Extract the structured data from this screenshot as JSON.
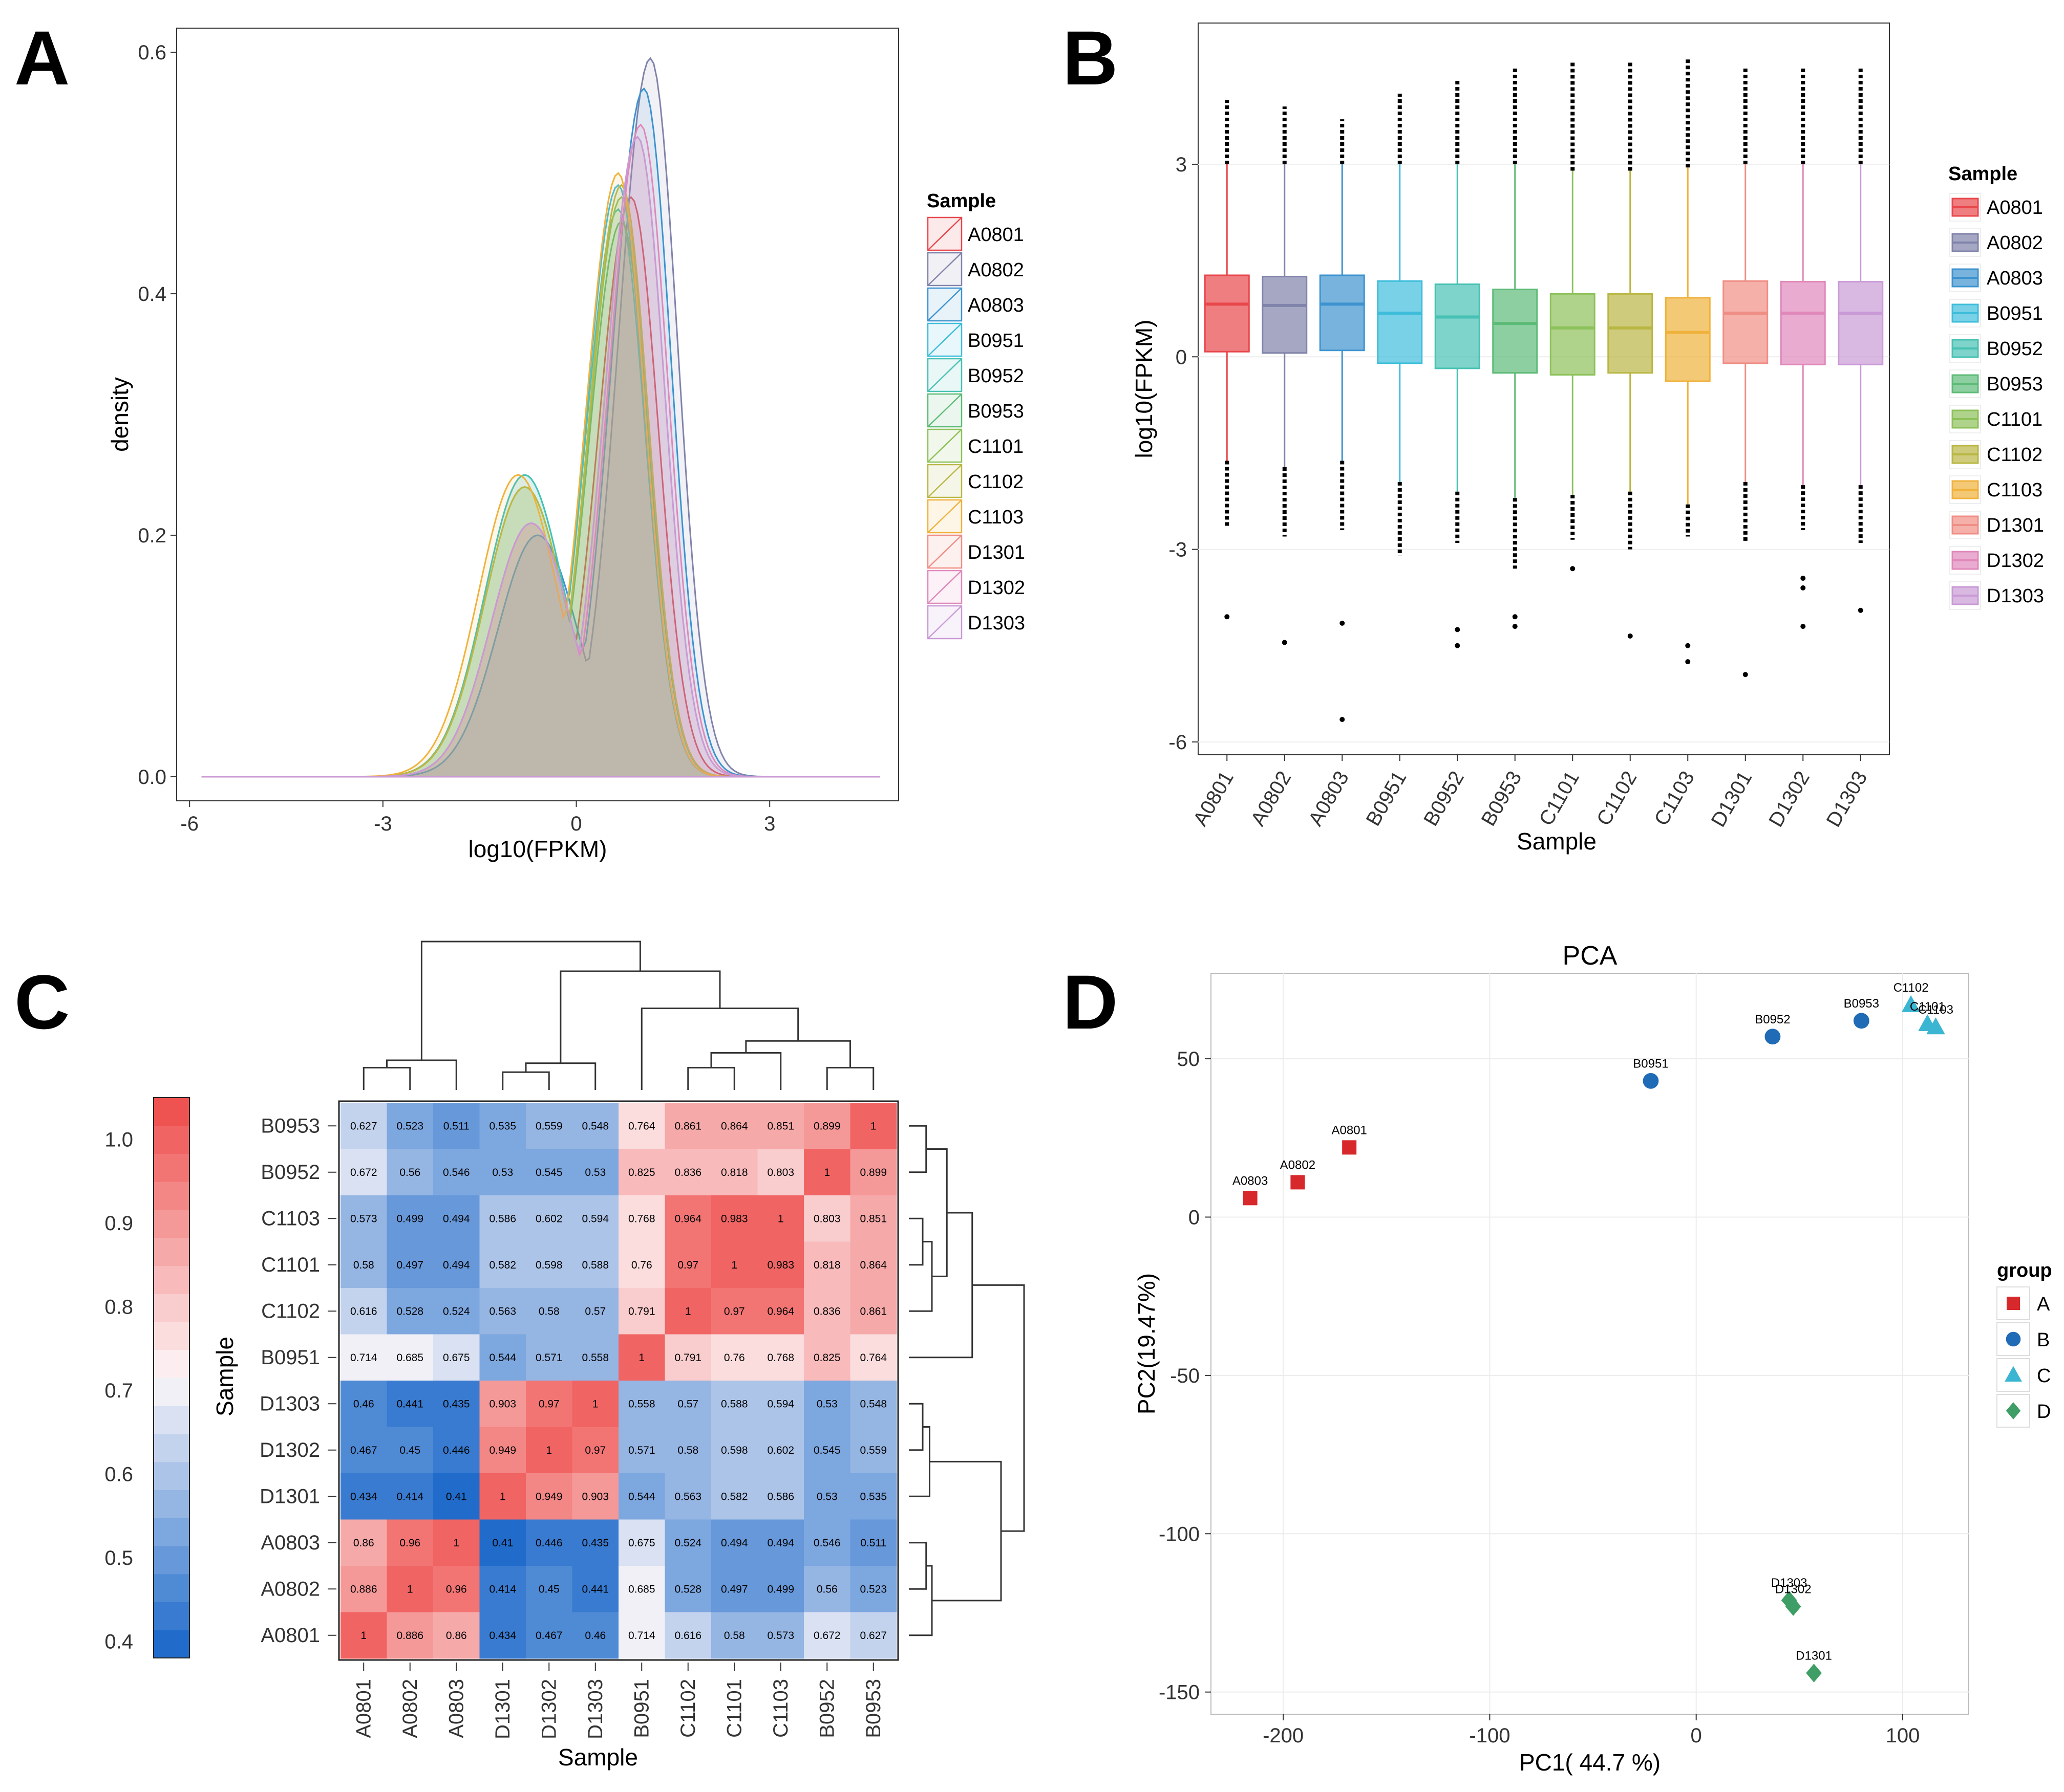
{
  "panels": {
    "a": "A",
    "b": "B",
    "c": "C",
    "d": "D"
  },
  "samples": [
    "A0801",
    "A0802",
    "A0803",
    "B0951",
    "B0952",
    "B0953",
    "C1101",
    "C1102",
    "C1103",
    "D1301",
    "D1302",
    "D1303"
  ],
  "colors": {
    "A0801": "#E8474C",
    "A0802": "#8083AA",
    "A0803": "#3D93CF",
    "B0951": "#3EBDDB",
    "B0952": "#47C1B3",
    "B0953": "#5DBB77",
    "C1101": "#8DC15A",
    "C1102": "#B9B744",
    "C1103": "#EFB23C",
    "D1301": "#EF8E85",
    "D1302": "#E088BA",
    "D1303": "#C99AD6"
  },
  "chart_data": [
    {
      "panel": "A",
      "type": "area",
      "title": "",
      "xlabel": "log10(FPKM)",
      "ylabel": "density",
      "xlim": [
        -6.2,
        5.0
      ],
      "ylim": [
        -0.02,
        0.62
      ],
      "xticks": [
        -6,
        -3,
        0,
        3
      ],
      "yticks": [
        0.0,
        0.2,
        0.4,
        0.6
      ],
      "xtick_labels": [
        "-6",
        "-3",
        "0",
        "3"
      ],
      "ytick_labels": [
        "0.0",
        "0.2",
        "0.4",
        "0.6"
      ],
      "legend_title": "Sample",
      "legend_labels": [
        "A0801",
        "A0802",
        "A0803",
        "B0951",
        "B0952",
        "B0953",
        "C1101",
        "C1102",
        "C1103",
        "D1301",
        "D1302",
        "D1303"
      ],
      "x_range": [
        -5.8,
        4.7
      ],
      "series": [
        {
          "name": "A0801",
          "peak_x": 0.85,
          "peak": 0.48,
          "shoulder_x": -0.7,
          "shoulder": 0.21
        },
        {
          "name": "A0802",
          "peak_x": 1.15,
          "peak": 0.595,
          "shoulder_x": -0.6,
          "shoulder": 0.2
        },
        {
          "name": "A0803",
          "peak_x": 1.05,
          "peak": 0.57,
          "shoulder_x": -0.6,
          "shoulder": 0.2
        },
        {
          "name": "B0951",
          "peak_x": 0.65,
          "peak": 0.49,
          "shoulder_x": -0.8,
          "shoulder": 0.25
        },
        {
          "name": "B0952",
          "peak_x": 0.65,
          "peak": 0.47,
          "shoulder_x": -0.8,
          "shoulder": 0.25
        },
        {
          "name": "B0953",
          "peak_x": 0.7,
          "peak": 0.46,
          "shoulder_x": -0.8,
          "shoulder": 0.24
        },
        {
          "name": "C1101",
          "peak_x": 0.7,
          "peak": 0.48,
          "shoulder_x": -0.8,
          "shoulder": 0.24
        },
        {
          "name": "C1102",
          "peak_x": 0.7,
          "peak": 0.49,
          "shoulder_x": -0.8,
          "shoulder": 0.24
        },
        {
          "name": "C1103",
          "peak_x": 0.65,
          "peak": 0.5,
          "shoulder_x": -0.9,
          "shoulder": 0.25
        },
        {
          "name": "D1301",
          "peak_x": 0.95,
          "peak": 0.53,
          "shoulder_x": -0.7,
          "shoulder": 0.21
        },
        {
          "name": "D1302",
          "peak_x": 1.0,
          "peak": 0.54,
          "shoulder_x": -0.7,
          "shoulder": 0.21
        },
        {
          "name": "D1303",
          "peak_x": 0.95,
          "peak": 0.53,
          "shoulder_x": -0.7,
          "shoulder": 0.21
        }
      ]
    },
    {
      "panel": "B",
      "type": "box",
      "title": "",
      "xlabel": "Sample",
      "ylabel": "log10(FPKM)",
      "ylim": [
        -6.2,
        5.2
      ],
      "yticks": [
        -6,
        -3,
        0,
        3
      ],
      "ytick_labels": [
        "-6",
        "-3",
        "0",
        "3"
      ],
      "legend_title": "Sample",
      "categories": [
        "A0801",
        "A0802",
        "A0803",
        "B0951",
        "B0952",
        "B0953",
        "C1101",
        "C1102",
        "C1103",
        "D1301",
        "D1302",
        "D1303"
      ],
      "boxes": [
        {
          "q1": 0.08,
          "median": 0.82,
          "q3": 1.27,
          "whisker_low": -1.62,
          "whisker_high": 3.0,
          "out_low": -2.65,
          "out_high": 4.0,
          "extra_outliers": [
            -4.05
          ]
        },
        {
          "q1": 0.06,
          "median": 0.8,
          "q3": 1.25,
          "whisker_low": -1.72,
          "whisker_high": 3.0,
          "out_low": -2.8,
          "out_high": 3.9,
          "extra_outliers": [
            -4.45
          ]
        },
        {
          "q1": 0.1,
          "median": 0.82,
          "q3": 1.27,
          "whisker_low": -1.62,
          "whisker_high": 3.0,
          "out_low": -2.7,
          "out_high": 3.7,
          "extra_outliers": [
            -4.15,
            -5.65
          ]
        },
        {
          "q1": -0.1,
          "median": 0.68,
          "q3": 1.18,
          "whisker_low": -1.95,
          "whisker_high": 3.0,
          "out_low": -3.1,
          "out_high": 4.1,
          "extra_outliers": []
        },
        {
          "q1": -0.18,
          "median": 0.62,
          "q3": 1.13,
          "whisker_low": -2.1,
          "whisker_high": 3.0,
          "out_low": -2.9,
          "out_high": 4.3,
          "extra_outliers": [
            -4.25,
            -4.5
          ]
        },
        {
          "q1": -0.25,
          "median": 0.52,
          "q3": 1.05,
          "whisker_low": -2.2,
          "whisker_high": 3.0,
          "out_low": -3.3,
          "out_high": 4.5,
          "extra_outliers": [
            -4.05,
            -4.2
          ]
        },
        {
          "q1": -0.28,
          "median": 0.45,
          "q3": 0.98,
          "whisker_low": -2.15,
          "whisker_high": 2.9,
          "out_low": -2.85,
          "out_high": 4.6,
          "extra_outliers": [
            -3.3
          ]
        },
        {
          "q1": -0.25,
          "median": 0.45,
          "q3": 0.98,
          "whisker_low": -2.1,
          "whisker_high": 2.9,
          "out_low": -3.0,
          "out_high": 4.6,
          "extra_outliers": [
            -4.35
          ]
        },
        {
          "q1": -0.38,
          "median": 0.38,
          "q3": 0.92,
          "whisker_low": -2.3,
          "whisker_high": 2.95,
          "out_low": -2.8,
          "out_high": 4.65,
          "extra_outliers": [
            -4.5,
            -4.75
          ]
        },
        {
          "q1": -0.1,
          "median": 0.68,
          "q3": 1.18,
          "whisker_low": -1.95,
          "whisker_high": 3.0,
          "out_low": -2.9,
          "out_high": 4.5,
          "extra_outliers": [
            -4.95
          ]
        },
        {
          "q1": -0.12,
          "median": 0.68,
          "q3": 1.17,
          "whisker_low": -2.0,
          "whisker_high": 3.0,
          "out_low": -2.7,
          "out_high": 4.5,
          "extra_outliers": [
            -3.45,
            -3.6,
            -4.2
          ]
        },
        {
          "q1": -0.12,
          "median": 0.68,
          "q3": 1.17,
          "whisker_low": -2.0,
          "whisker_high": 3.0,
          "out_low": -2.9,
          "out_high": 4.5,
          "extra_outliers": [
            -3.95
          ]
        }
      ]
    },
    {
      "panel": "C",
      "type": "heatmap",
      "title": "",
      "xlabel": "Sample",
      "ylabel": "Sample",
      "col_labels": [
        "A0801",
        "A0802",
        "A0803",
        "D1301",
        "D1302",
        "D1303",
        "B0951",
        "C1102",
        "C1101",
        "C1103",
        "B0952",
        "B0953"
      ],
      "row_labels": [
        "B0953",
        "B0952",
        "C1103",
        "C1101",
        "C1102",
        "B0951",
        "D1303",
        "D1302",
        "D1301",
        "A0803",
        "A0802",
        "A0801"
      ],
      "values": [
        [
          0.627,
          0.523,
          0.511,
          0.535,
          0.559,
          0.548,
          0.764,
          0.861,
          0.864,
          0.851,
          0.899,
          1
        ],
        [
          0.672,
          0.56,
          0.546,
          0.53,
          0.545,
          0.53,
          0.825,
          0.836,
          0.818,
          0.803,
          1,
          0.899
        ],
        [
          0.573,
          0.499,
          0.494,
          0.586,
          0.602,
          0.594,
          0.768,
          0.964,
          0.983,
          1,
          0.803,
          0.851
        ],
        [
          0.58,
          0.497,
          0.494,
          0.582,
          0.598,
          0.588,
          0.76,
          0.97,
          1,
          0.983,
          0.818,
          0.864
        ],
        [
          0.616,
          0.528,
          0.524,
          0.563,
          0.58,
          0.57,
          0.791,
          1,
          0.97,
          0.964,
          0.836,
          0.861
        ],
        [
          0.714,
          0.685,
          0.675,
          0.544,
          0.571,
          0.558,
          1,
          0.791,
          0.76,
          0.768,
          0.825,
          0.764
        ],
        [
          0.46,
          0.441,
          0.435,
          0.903,
          0.97,
          1,
          0.558,
          0.57,
          0.588,
          0.594,
          0.53,
          0.548
        ],
        [
          0.467,
          0.45,
          0.446,
          0.949,
          1,
          0.97,
          0.571,
          0.58,
          0.598,
          0.602,
          0.545,
          0.559
        ],
        [
          0.434,
          0.414,
          0.41,
          1,
          0.949,
          0.903,
          0.544,
          0.563,
          0.582,
          0.586,
          0.53,
          0.535
        ],
        [
          0.86,
          0.96,
          1,
          0.41,
          0.446,
          0.435,
          0.675,
          0.524,
          0.494,
          0.494,
          0.546,
          0.511
        ],
        [
          0.886,
          1,
          0.96,
          0.414,
          0.45,
          0.441,
          0.685,
          0.528,
          0.497,
          0.499,
          0.56,
          0.523
        ],
        [
          1,
          0.886,
          0.86,
          0.434,
          0.467,
          0.46,
          0.714,
          0.616,
          0.58,
          0.573,
          0.672,
          0.627
        ]
      ],
      "cell_labels": [
        [
          "0.627",
          "0.523",
          "0.511",
          "0.535",
          "0.559",
          "0.548",
          "0.764",
          "0.861",
          "0.864",
          "0.851",
          "0.899",
          "1"
        ],
        [
          "0.672",
          "0.56",
          "0.546",
          "0.53",
          "0.545",
          "0.53",
          "0.825",
          "0.836",
          "0.818",
          "0.803",
          "1",
          "0.899"
        ],
        [
          "0.573",
          "0.499",
          "0.494",
          "0.586",
          "0.602",
          "0.594",
          "0.768",
          "0.964",
          "0.983",
          "1",
          "0.803",
          "0.851"
        ],
        [
          "0.58",
          "0.497",
          "0.494",
          "0.582",
          "0.598",
          "0.588",
          "0.76",
          "0.97",
          "1",
          "0.983",
          "0.818",
          "0.864"
        ],
        [
          "0.616",
          "0.528",
          "0.524",
          "0.563",
          "0.58",
          "0.57",
          "0.791",
          "1",
          "0.97",
          "0.964",
          "0.836",
          "0.861"
        ],
        [
          "0.714",
          "0.685",
          "0.675",
          "0.544",
          "0.571",
          "0.558",
          "1",
          "0.791",
          "0.76",
          "0.768",
          "0.825",
          "0.764"
        ],
        [
          "0.46",
          "0.441",
          "0.435",
          "0.903",
          "0.97",
          "1",
          "0.558",
          "0.57",
          "0.588",
          "0.594",
          "0.53",
          "0.548"
        ],
        [
          "0.467",
          "0.45",
          "0.446",
          "0.949",
          "1",
          "0.97",
          "0.571",
          "0.58",
          "0.598",
          "0.602",
          "0.545",
          "0.559"
        ],
        [
          "0.434",
          "0.414",
          "0.41",
          "1",
          "0.949",
          "0.903",
          "0.544",
          "0.563",
          "0.582",
          "0.586",
          "0.53",
          "0.535"
        ],
        [
          "0.86",
          "0.96",
          "1",
          "0.41",
          "0.446",
          "0.435",
          "0.675",
          "0.524",
          "0.494",
          "0.494",
          "0.546",
          "0.511"
        ],
        [
          "0.886",
          "1",
          "0.96",
          "0.414",
          "0.45",
          "0.441",
          "0.685",
          "0.528",
          "0.497",
          "0.499",
          "0.56",
          "0.523"
        ],
        [
          "1",
          "0.886",
          "0.86",
          "0.434",
          "0.467",
          "0.46",
          "0.714",
          "0.616",
          "0.58",
          "0.573",
          "0.672",
          "0.627"
        ]
      ],
      "colorbar": {
        "min": 0.38,
        "max": 1.05,
        "ticks": [
          0.4,
          0.5,
          0.6,
          0.7,
          0.8,
          0.9,
          1.0
        ],
        "tick_labels": [
          "0.4",
          "0.5",
          "0.6",
          "0.7",
          "0.8",
          "0.9",
          "1.0"
        ],
        "steps": 20,
        "low_color": "#1565C9",
        "mid_color": "#FDF7F9",
        "high_color": "#EE4A48"
      },
      "col_dendrogram": [
        [
          0,
          1,
          0.15
        ],
        [
          12,
          2,
          0.2
        ],
        [
          3,
          4,
          0.12
        ],
        [
          5,
          14,
          0.18
        ],
        [
          7,
          8,
          0.15
        ],
        [
          16,
          9,
          0.25
        ],
        [
          10,
          11,
          0.15
        ],
        [
          17,
          18,
          0.33
        ],
        [
          6,
          19,
          0.55
        ],
        [
          15,
          20,
          0.8
        ],
        [
          13,
          21,
          1.0
        ]
      ],
      "row_dendrogram": [
        [
          0,
          1,
          0.15
        ],
        [
          2,
          3,
          0.12
        ],
        [
          13,
          4,
          0.2
        ],
        [
          12,
          14,
          0.33
        ],
        [
          5,
          15,
          0.55
        ],
        [
          6,
          7,
          0.12
        ],
        [
          8,
          17,
          0.18
        ],
        [
          9,
          10,
          0.15
        ],
        [
          19,
          11,
          0.2
        ],
        [
          18,
          20,
          0.8
        ],
        [
          16,
          21,
          1.0
        ]
      ]
    },
    {
      "panel": "D",
      "type": "scatter",
      "title": "PCA",
      "xlabel": "PC1( 44.7 %)",
      "ylabel": "PC2(19.47%)",
      "xlim": [
        -235,
        132
      ],
      "ylim": [
        -157,
        77
      ],
      "xticks": [
        -200,
        -100,
        0,
        100
      ],
      "yticks": [
        -150,
        -100,
        -50,
        0,
        50
      ],
      "xtick_labels": [
        "-200",
        "-100",
        "0",
        "100"
      ],
      "ytick_labels": [
        "-150",
        "-100",
        "-50",
        "0",
        "50"
      ],
      "legend_title": "group",
      "groups": [
        {
          "name": "A",
          "color": "#D7282C",
          "shape": "square"
        },
        {
          "name": "B",
          "color": "#1F6BB5",
          "shape": "circle"
        },
        {
          "name": "C",
          "color": "#3BB6D2",
          "shape": "triangle"
        },
        {
          "name": "D",
          "color": "#3E9E66",
          "shape": "diamond"
        }
      ],
      "points": [
        {
          "label": "A0801",
          "group": "A",
          "x": -168,
          "y": 22
        },
        {
          "label": "A0802",
          "group": "A",
          "x": -193,
          "y": 11
        },
        {
          "label": "A0803",
          "group": "A",
          "x": -216,
          "y": 6
        },
        {
          "label": "B0951",
          "group": "B",
          "x": -22,
          "y": 43
        },
        {
          "label": "B0952",
          "group": "B",
          "x": 37,
          "y": 57
        },
        {
          "label": "B0953",
          "group": "B",
          "x": 80,
          "y": 62
        },
        {
          "label": "C1102",
          "group": "C",
          "x": 104,
          "y": 67
        },
        {
          "label": "C1101",
          "group": "C",
          "x": 112,
          "y": 61
        },
        {
          "label": "C1103",
          "group": "C",
          "x": 116,
          "y": 60
        },
        {
          "label": "D1303",
          "group": "D",
          "x": 45,
          "y": -121
        },
        {
          "label": "D1302",
          "group": "D",
          "x": 47,
          "y": -123
        },
        {
          "label": "D1301",
          "group": "D",
          "x": 57,
          "y": -144
        }
      ]
    }
  ]
}
